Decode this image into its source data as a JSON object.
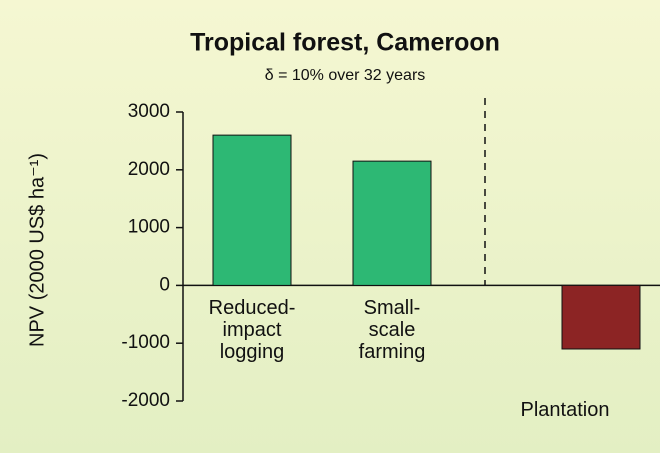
{
  "chart_data": {
    "type": "bar",
    "title": "Tropical forest, Cameroon",
    "subtitle": "δ = 10% over 32 years",
    "y_label": "NPV (2000 US$ ha⁻¹)",
    "categories": [
      "Reduced-\nimpact\nlogging",
      "Small-\nscale\nfarming",
      "Plantation"
    ],
    "values": [
      2600,
      2150,
      -1100
    ],
    "colors": [
      "#2db874",
      "#2db874",
      "#8c2424"
    ],
    "ylim": [
      -2000,
      3000
    ],
    "yticks": [
      3000,
      2000,
      1000,
      0,
      -1000,
      -2000
    ],
    "grid": false
  }
}
